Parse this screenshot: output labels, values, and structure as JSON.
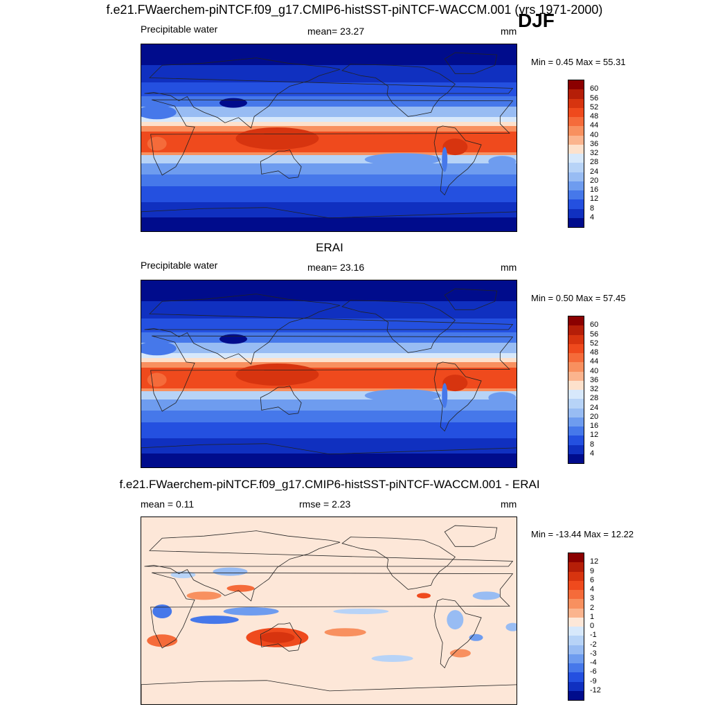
{
  "header": {
    "title": "f.e21.FWaerchem-piNTCF.f09_g17.CMIP6-histSST-piNTCF-WACCM.001 (yrs 1971-2000)",
    "season": "DJF"
  },
  "panels": [
    {
      "id": "model",
      "title": "",
      "left_label": "Precipitable water",
      "center_label": "mean=  23.27",
      "units": "mm",
      "minmax": "Min =   0.45 Max =  55.31",
      "map_kind": "pw"
    },
    {
      "id": "obs",
      "title": "ERAI",
      "left_label": "Precipitable water",
      "center_label": "mean=  23.16",
      "units": "mm",
      "minmax": "Min =   0.50 Max =  57.45",
      "map_kind": "pw"
    },
    {
      "id": "diff",
      "title": "f.e21.FWaerchem-piNTCF.f09_g17.CMIP6-histSST-piNTCF-WACCM.001 - ERAI",
      "left_label": "mean =   0.11",
      "center_label": "rmse =   2.23",
      "units": "mm",
      "minmax": "Min = -13.44 Max =  12.22",
      "map_kind": "diff"
    }
  ],
  "colorbars": {
    "pw": {
      "labels": [
        "60",
        "56",
        "52",
        "48",
        "44",
        "40",
        "36",
        "32",
        "28",
        "24",
        "20",
        "16",
        "12",
        "8",
        "4"
      ],
      "colors": [
        "#8b0000",
        "#b51e08",
        "#d7340f",
        "#ef4a1d",
        "#f56b3a",
        "#f8905f",
        "#fbb48e",
        "#fde1cc",
        "#d7e8fb",
        "#b7d3f7",
        "#98bcf3",
        "#6e9cef",
        "#4678ea",
        "#2450e0",
        "#1030c0",
        "#000c8c"
      ]
    },
    "diff": {
      "labels": [
        "12",
        "9",
        "6",
        "4",
        "3",
        "2",
        "1",
        "0",
        "-1",
        "-2",
        "-3",
        "-4",
        "-6",
        "-9",
        "-12"
      ],
      "colors": [
        "#8b0000",
        "#b51e08",
        "#d7340f",
        "#ef4a1d",
        "#f56b3a",
        "#f8905f",
        "#fbb48e",
        "#fde7d8",
        "#d7e8fb",
        "#b7d3f7",
        "#98bcf3",
        "#6e9cef",
        "#4678ea",
        "#2450e0",
        "#1030c0",
        "#000c8c"
      ]
    }
  }
}
